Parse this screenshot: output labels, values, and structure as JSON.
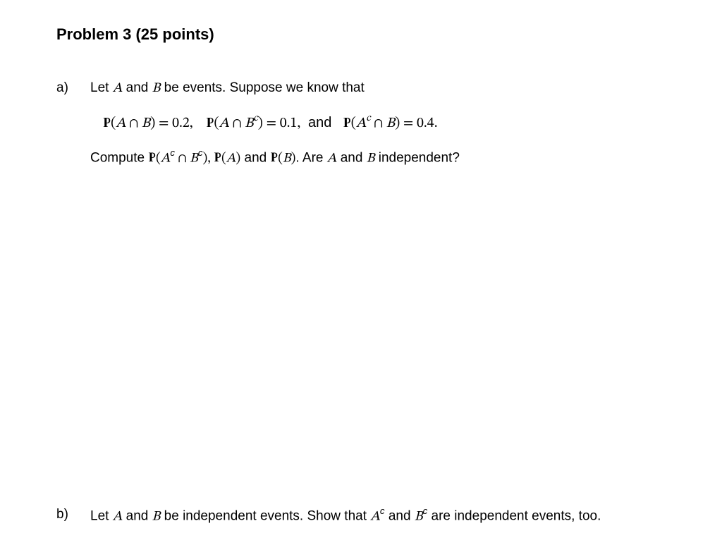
{
  "title": "Problem 3 (25 points)",
  "parts": {
    "a": {
      "label": "a)",
      "intro_pre": "Let ",
      "A": "A",
      "and1": " and ",
      "B": "B",
      "intro_post": " be events. Suppose we know that",
      "p1_lhs": "P",
      "p1_arg_open": "(",
      "p1_A": "A",
      "cap": " ∩ ",
      "p1_B": "B",
      "p1_close_eq": ") = 0.2,",
      "p2_lhs": "P",
      "p2_arg": "(A ∩ B",
      "sup_c": "c",
      "p2_close_eq": ") = 0.1,",
      "and_word": "  and  ",
      "p3_lhs": "P",
      "p3_arg": "(A",
      "p3_mid": " ∩ B) = 0.4.",
      "compute": "Compute ",
      "q1": "(A",
      "q1b": " ∩ B",
      "q1c": "), ",
      "q2": "(A)",
      "and2": " and ",
      "q3": "(B)",
      "tail": ". Are ",
      "tail_and": " and ",
      "tail_end": " independent?"
    },
    "b": {
      "label": "b)",
      "pre": "Let ",
      "A": "A",
      "and": " and ",
      "B": "B",
      "mid": " be independent events. Show that ",
      "Ac": "A",
      "sup_c": "c",
      "and2": " and ",
      "Bc": "B",
      "post": " are independent events, too."
    }
  }
}
